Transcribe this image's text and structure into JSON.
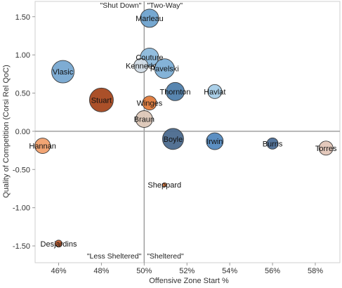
{
  "chart_data": {
    "type": "scatter",
    "xlabel": "Offensive Zone Start %",
    "ylabel": "Quality of Competition (Corsi Rel QoC)",
    "xlim": [
      0.449,
      0.5915
    ],
    "ylim": [
      -1.72,
      1.7
    ],
    "x_ticks": [
      0.46,
      0.48,
      0.5,
      0.52,
      0.54,
      0.56,
      0.58
    ],
    "x_tick_labels": [
      "46%",
      "48%",
      "50%",
      "52%",
      "54%",
      "56%",
      "58%"
    ],
    "y_ticks": [
      1.5,
      1.0,
      0.5,
      0.0,
      -0.5,
      -1.0,
      -1.5
    ],
    "y_tick_labels": [
      "1.50",
      "1.00",
      "0.50",
      "0.00",
      "-0.50",
      "-1.00",
      "-1.50"
    ],
    "reference_lines": {
      "x": 0.5,
      "y": 0.0
    },
    "quadrant_labels": [
      {
        "text": "\"Shut Down\"",
        "position": "top-left"
      },
      {
        "text": "\"Two-Way\"",
        "position": "top-right"
      },
      {
        "text": "\"Less Sheltered\"",
        "position": "bottom-left"
      },
      {
        "text": "\"Sheltered\"",
        "position": "bottom-right"
      }
    ],
    "points": [
      {
        "name": "Marleau",
        "x": 0.5025,
        "y": 1.48,
        "size": 13,
        "color": "#6fa3cf"
      },
      {
        "name": "Couture",
        "x": 0.5025,
        "y": 0.97,
        "size": 13,
        "color": "#8cb9dc"
      },
      {
        "name": "Kennedy",
        "x": 0.4985,
        "y": 0.86,
        "size": 10,
        "color": "#d2dce6"
      },
      {
        "name": "Pavelski",
        "x": 0.5095,
        "y": 0.82,
        "size": 14,
        "color": "#7dafd6"
      },
      {
        "name": "Vlasic",
        "x": 0.462,
        "y": 0.78,
        "size": 16,
        "color": "#77a8d1"
      },
      {
        "name": "Thornton",
        "x": 0.5145,
        "y": 0.52,
        "size": 13,
        "color": "#4f7fac"
      },
      {
        "name": "Havlat",
        "x": 0.533,
        "y": 0.52,
        "size": 10,
        "color": "#a7cde8"
      },
      {
        "name": "Stuart",
        "x": 0.48,
        "y": 0.41,
        "size": 17,
        "color": "#a6471d"
      },
      {
        "name": "Winges",
        "x": 0.5025,
        "y": 0.37,
        "size": 10,
        "color": "#e07b3c"
      },
      {
        "name": "Braun",
        "x": 0.5,
        "y": 0.16,
        "size": 12,
        "color": "#ddc7b7"
      },
      {
        "name": "Boyle",
        "x": 0.5135,
        "y": -0.1,
        "size": 15,
        "color": "#4b6a8e"
      },
      {
        "name": "Irwin",
        "x": 0.533,
        "y": -0.13,
        "size": 12,
        "color": "#5389bf"
      },
      {
        "name": "Burns",
        "x": 0.56,
        "y": -0.16,
        "size": 8,
        "color": "#4d6f98"
      },
      {
        "name": "Torres",
        "x": 0.585,
        "y": -0.22,
        "size": 10,
        "color": "#e3c6b8"
      },
      {
        "name": "Hannan",
        "x": 0.4525,
        "y": -0.19,
        "size": 11,
        "color": "#f1a06d"
      },
      {
        "name": "Sheppard",
        "x": 0.5095,
        "y": -0.7,
        "size": 3,
        "color": "#d8743a"
      },
      {
        "name": "Desjardins",
        "x": 0.46,
        "y": -1.47,
        "size": 5,
        "color": "#bf5a2b"
      }
    ]
  }
}
